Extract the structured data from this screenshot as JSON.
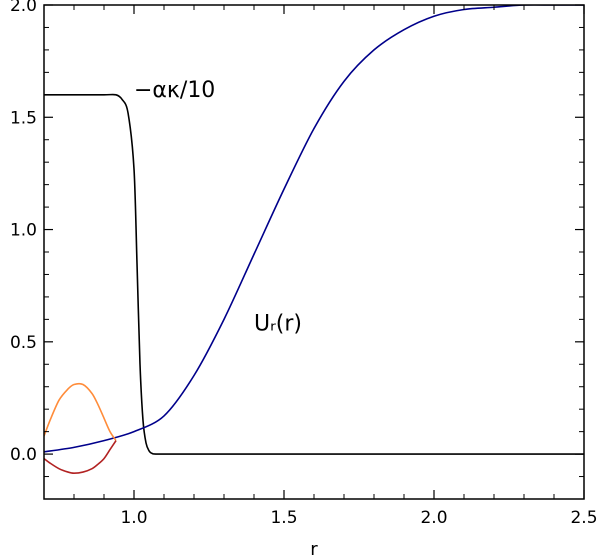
{
  "chart_data": {
    "type": "line",
    "title": "",
    "xlabel": "r",
    "ylabel": "",
    "xlim": [
      0.7,
      2.5
    ],
    "ylim": [
      -0.2,
      2.0
    ],
    "x_ticks": [
      1.0,
      1.5,
      2.0,
      2.5
    ],
    "x_tick_labels": [
      "1.0",
      "1.5",
      "2.0",
      "2.5"
    ],
    "y_ticks": [
      0.0,
      0.5,
      1.0,
      1.5,
      2.0
    ],
    "y_tick_labels": [
      "0.0",
      "0.5",
      "1.0",
      "1.5",
      "2.0"
    ],
    "grid": false,
    "annotations": [
      {
        "text": "−ακ/10",
        "x": 1.0,
        "y": 1.59
      },
      {
        "text": "Uᵣ(r)",
        "x": 1.4,
        "y": 0.55
      }
    ],
    "series": [
      {
        "color": "#000000",
        "x": [
          0.7,
          0.8,
          0.9,
          0.94,
          0.96,
          0.98,
          1.0,
          1.01,
          1.02,
          1.03,
          1.04,
          1.05,
          1.06,
          1.08,
          1.2,
          1.5,
          2.0,
          2.5
        ],
        "y": [
          1.6,
          1.6,
          1.6,
          1.6,
          1.58,
          1.52,
          1.27,
          0.85,
          0.4,
          0.15,
          0.05,
          0.015,
          0.003,
          0.0,
          0.0,
          0.0,
          0.0,
          0.0
        ]
      },
      {
        "color": "#00008b",
        "x": [
          0.7,
          0.8,
          0.9,
          1.0,
          1.1,
          1.2,
          1.3,
          1.4,
          1.5,
          1.6,
          1.7,
          1.8,
          1.9,
          2.0,
          2.1,
          2.2,
          2.3,
          2.4,
          2.5
        ],
        "y": [
          0.01,
          0.03,
          0.06,
          0.1,
          0.17,
          0.35,
          0.6,
          0.89,
          1.18,
          1.45,
          1.66,
          1.8,
          1.89,
          1.95,
          1.98,
          1.99,
          2.0,
          2.0,
          2.0
        ]
      },
      {
        "color": "#ff8c3a",
        "x": [
          0.7,
          0.72,
          0.75,
          0.78,
          0.8,
          0.83,
          0.86,
          0.88,
          0.9,
          0.92,
          0.94
        ],
        "y": [
          0.08,
          0.15,
          0.24,
          0.29,
          0.31,
          0.31,
          0.27,
          0.22,
          0.16,
          0.1,
          0.06
        ]
      },
      {
        "color": "#b22222",
        "x": [
          0.7,
          0.72,
          0.75,
          0.78,
          0.8,
          0.83,
          0.86,
          0.88,
          0.9,
          0.92,
          0.94
        ],
        "y": [
          -0.02,
          -0.04,
          -0.065,
          -0.08,
          -0.085,
          -0.08,
          -0.065,
          -0.045,
          -0.02,
          0.02,
          0.06
        ]
      }
    ]
  }
}
